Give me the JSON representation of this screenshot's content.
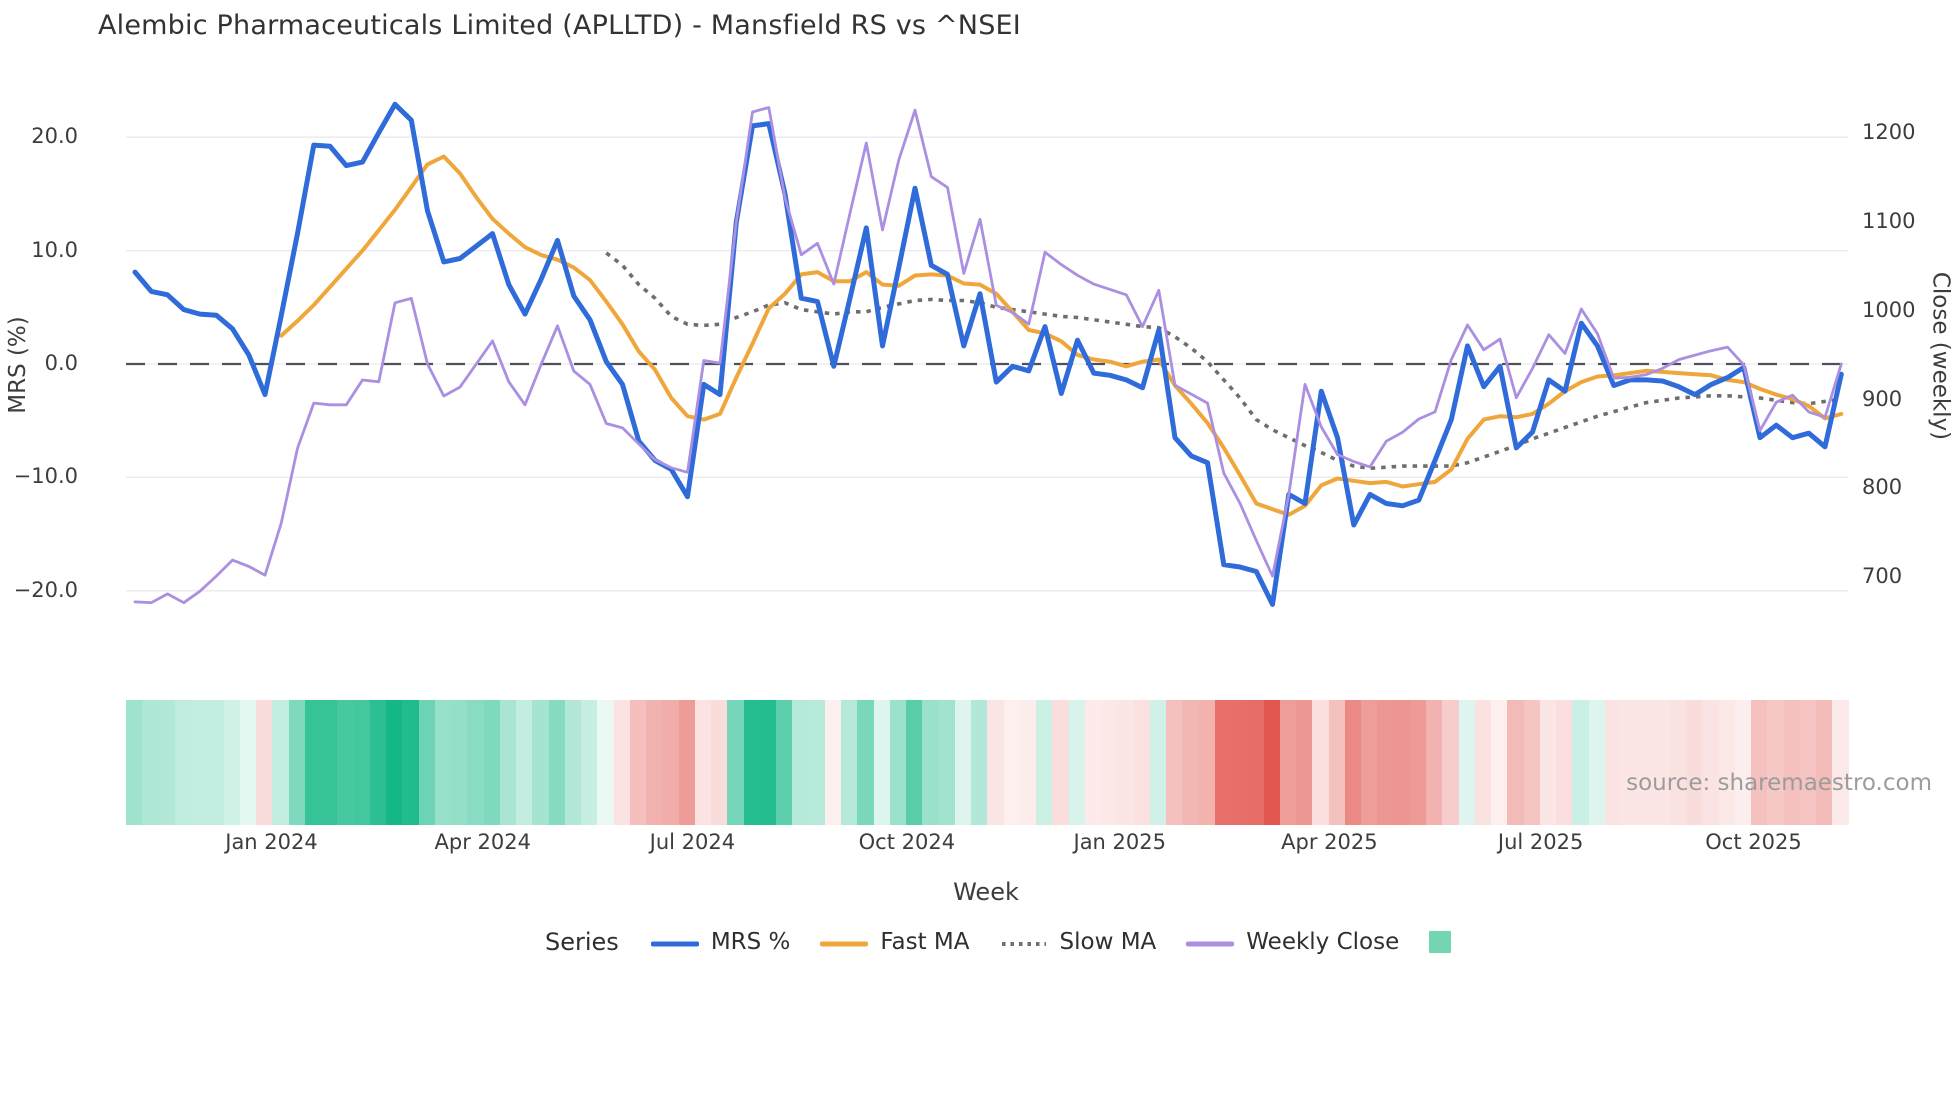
{
  "title": "Alembic Pharmaceuticals Limited (APLLTD) - Mansfield RS vs ^NSEI",
  "source_note": "source: sharemaestro.com",
  "legend": {
    "title": "Series",
    "entries": [
      "MRS %",
      "Fast MA",
      "Slow MA",
      "Weekly Close"
    ],
    "extra_swatch_color": "#72d6b0"
  },
  "chart_data": {
    "type": "line",
    "xlabel": "Week",
    "grid": true,
    "x_ticks": [
      {
        "label": "Jan 2024",
        "week": 8.4
      },
      {
        "label": "Apr 2024",
        "week": 21.4
      },
      {
        "label": "Jul 2024",
        "week": 34.3
      },
      {
        "label": "Oct 2024",
        "week": 47.5
      },
      {
        "label": "Jan 2025",
        "week": 60.6
      },
      {
        "label": "Apr 2025",
        "week": 73.5
      },
      {
        "label": "Jul 2025",
        "week": 86.5
      },
      {
        "label": "Oct 2025",
        "week": 99.6
      }
    ],
    "left_axis": {
      "label": "MRS (%)",
      "tick_values": [
        20,
        10,
        0,
        -10,
        -20
      ],
      "tick_labels": [
        "20.0",
        "10.0",
        "0.0",
        "−10.0",
        "−20.0"
      ],
      "ylim": [
        -25,
        25
      ]
    },
    "right_axis": {
      "label": "Close (weekly)",
      "tick_values": [
        1200,
        1100,
        1000,
        900,
        800,
        700
      ],
      "tick_labels": [
        "1200",
        "1100",
        "1000",
        "900",
        "800",
        "700"
      ],
      "ylim": [
        620,
        1260
      ]
    },
    "zero_line": {
      "value": 0,
      "style": "dashed",
      "color": "#50505a"
    },
    "series": [
      {
        "name": "MRS %",
        "axis": "left",
        "color": "#2f6bd9",
        "style": "solid",
        "width": 5,
        "values": [
          8.1,
          6.4,
          6.1,
          4.8,
          4.4,
          4.3,
          3.1,
          0.8,
          -2.7,
          4.3,
          11.5,
          19.3,
          19.2,
          17.5,
          17.8,
          20.4,
          22.9,
          21.5,
          13.5,
          9.0,
          9.3,
          10.4,
          11.5,
          7.0,
          4.4,
          7.5,
          10.9,
          6.0,
          3.9,
          0.2,
          -1.8,
          -6.8,
          -8.5,
          -9.3,
          -11.7,
          -1.8,
          -2.7,
          12.5,
          21.0,
          21.2,
          15.0,
          5.8,
          5.5,
          -0.2,
          5.8,
          12.0,
          1.6,
          8.5,
          15.5,
          8.7,
          7.9,
          1.6,
          6.2,
          -1.6,
          -0.2,
          -0.6,
          3.3,
          -2.6,
          2.1,
          -0.8,
          -1.0,
          -1.4,
          -2.1,
          3.0,
          -6.5,
          -8.1,
          -8.7,
          -17.7,
          -17.9,
          -18.3,
          -21.2,
          -11.5,
          -12.3,
          -2.4,
          -6.5,
          -14.2,
          -11.5,
          -12.3,
          -12.5,
          -12.0,
          -8.5,
          -4.9,
          1.6,
          -2.0,
          -0.2,
          -7.4,
          -6.0,
          -1.4,
          -2.4,
          3.6,
          1.6,
          -1.9,
          -1.4,
          -1.4,
          -1.5,
          -2.0,
          -2.7,
          -1.8,
          -1.2,
          -0.3,
          -6.5,
          -5.4,
          -6.5,
          -6.1,
          -7.3,
          -0.9
        ]
      },
      {
        "name": "Fast MA",
        "axis": "left",
        "color": "#efa63b",
        "style": "solid",
        "width": 4,
        "values": [
          null,
          null,
          null,
          null,
          null,
          null,
          null,
          null,
          null,
          2.5,
          3.8,
          5.2,
          6.8,
          8.4,
          10.0,
          11.8,
          13.6,
          15.6,
          17.6,
          18.3,
          16.8,
          14.7,
          12.8,
          11.5,
          10.3,
          9.6,
          9.2,
          8.5,
          7.4,
          5.5,
          3.5,
          1.1,
          -0.5,
          -3.0,
          -4.6,
          -4.9,
          -4.4,
          -1.2,
          1.8,
          4.9,
          6.2,
          7.9,
          8.1,
          7.3,
          7.3,
          8.1,
          7.0,
          6.9,
          7.8,
          7.9,
          7.8,
          7.1,
          7.0,
          6.2,
          4.6,
          3.0,
          2.7,
          2.0,
          0.8,
          0.4,
          0.2,
          -0.2,
          0.2,
          0.4,
          -1.9,
          -3.5,
          -5.2,
          -7.4,
          -9.8,
          -12.3,
          -12.8,
          -13.3,
          -12.5,
          -10.7,
          -10.1,
          -10.3,
          -10.5,
          -10.4,
          -10.8,
          -10.6,
          -10.4,
          -9.3,
          -6.6,
          -4.9,
          -4.6,
          -4.7,
          -4.4,
          -3.5,
          -2.4,
          -1.6,
          -1.1,
          -1.0,
          -0.8,
          -0.6,
          -0.7,
          -0.8,
          -0.9,
          -1.0,
          -1.4,
          -1.6,
          -2.2,
          -2.7,
          -3.1,
          -3.7,
          -4.8,
          -4.4
        ]
      },
      {
        "name": "Slow MA",
        "axis": "left",
        "color": "#6e6e6e",
        "style": "dotted",
        "width": 3.6,
        "values": [
          null,
          null,
          null,
          null,
          null,
          null,
          null,
          null,
          null,
          null,
          null,
          null,
          null,
          null,
          null,
          null,
          null,
          null,
          null,
          null,
          null,
          null,
          null,
          null,
          null,
          null,
          null,
          null,
          null,
          9.8,
          8.7,
          7.0,
          5.8,
          4.2,
          3.5,
          3.4,
          3.5,
          4.1,
          4.6,
          5.2,
          5.4,
          4.8,
          4.6,
          4.4,
          4.6,
          4.6,
          5.0,
          5.3,
          5.6,
          5.7,
          5.6,
          5.6,
          5.4,
          5.0,
          4.8,
          4.6,
          4.4,
          4.2,
          4.1,
          3.9,
          3.7,
          3.5,
          3.3,
          3.2,
          2.4,
          1.4,
          0.2,
          -1.4,
          -3.0,
          -4.9,
          -5.8,
          -6.5,
          -7.2,
          -7.8,
          -8.5,
          -9.0,
          -9.2,
          -9.1,
          -9.0,
          -9.0,
          -9.0,
          -9.0,
          -8.7,
          -8.2,
          -7.7,
          -7.2,
          -6.6,
          -6.1,
          -5.6,
          -5.1,
          -4.6,
          -4.2,
          -3.8,
          -3.4,
          -3.2,
          -3.0,
          -2.9,
          -2.8,
          -2.8,
          -2.9,
          -3.0,
          -3.2,
          -3.4,
          -3.5,
          -3.3,
          -3.1
        ]
      },
      {
        "name": "Weekly Close",
        "axis": "right",
        "color": "#ab8fe0",
        "style": "solid",
        "width": 2.8,
        "values": [
          672,
          671,
          681,
          671,
          684,
          701,
          719,
          712,
          702,
          761,
          845,
          896,
          894,
          894,
          922,
          920,
          1009,
          1014,
          940,
          904,
          914,
          940,
          966,
          920,
          894,
          940,
          983,
          932,
          917,
          873,
          868,
          850,
          832,
          823,
          818,
          944,
          941,
          1100,
          1224,
          1229,
          1127,
          1063,
          1076,
          1030,
          1110,
          1189,
          1091,
          1170,
          1226,
          1151,
          1139,
          1042,
          1103,
          1006,
          998,
          985,
          1066,
          1052,
          1040,
          1030,
          1024,
          1018,
          982,
          1023,
          916,
          906,
          896,
          817,
          783,
          741,
          701,
          793,
          917,
          869,
          838,
          830,
          824,
          853,
          863,
          878,
          886,
          945,
          984,
          956,
          968,
          902,
          935,
          973,
          952,
          1002,
          974,
          924,
          925,
          928,
          935,
          945,
          950,
          955,
          959,
          939,
          865,
          897,
          905,
          886,
          880,
          940
        ]
      }
    ],
    "heatmap": {
      "derived_from": "MRS %",
      "positive_color": "#12b886",
      "negative_color": "#e04a42",
      "position": "strip below plot"
    }
  }
}
